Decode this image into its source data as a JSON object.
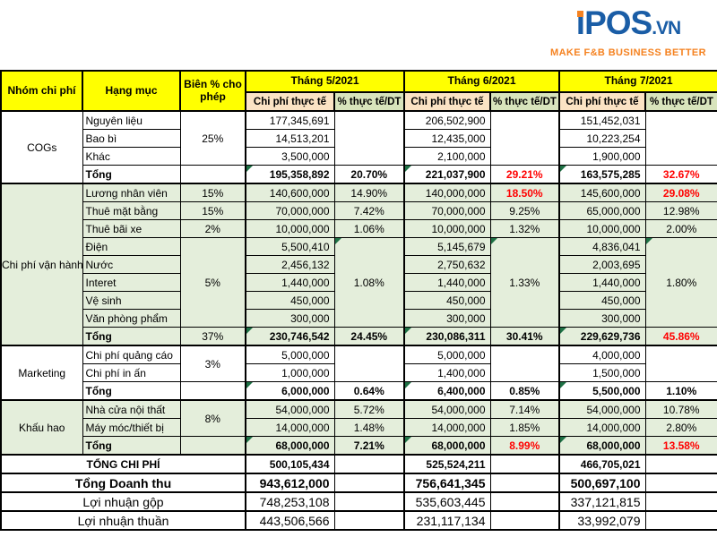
{
  "brand": {
    "i_glyph": "ı",
    "name_rest": "POS",
    "domain": ".VN",
    "full_name": "iPOS.VN",
    "tagline": "MAKE F&B BUSINESS BETTER"
  },
  "colors": {
    "header_yellow": "#FFFF00",
    "subheader_tan": "#FBE3C4",
    "subheader_sage": "#D8E4BC",
    "section_green": "#E4EEDB",
    "negative_red": "#FF0000",
    "triangle_green": "#1E7145",
    "brand_blue": "#1A5DA6",
    "brand_orange": "#F58220"
  },
  "table": {
    "rows": [
      {
        "cls": "hrow1",
        "name": "header-row",
        "cells": [
          {
            "t": "Nhóm chi phí",
            "rs": 2,
            "c": "hdr",
            "n": "header-nhom-chi-phi"
          },
          {
            "t": "Hạng mục",
            "rs": 2,
            "c": "hdr",
            "n": "header-hang-muc"
          },
          {
            "t": "Biên % cho phép",
            "rs": 2,
            "c": "hdr",
            "n": "header-bien-pct"
          },
          {
            "t": "Tháng 5/2021",
            "cs": 2,
            "c": "hdr",
            "n": "month-header-5-2021"
          },
          {
            "t": "Tháng 6/2021",
            "cs": 2,
            "c": "hdr",
            "n": "month-header-6-2021"
          },
          {
            "t": "Tháng 7/2021",
            "cs": 2,
            "c": "hdr",
            "n": "month-header-7-2021"
          }
        ]
      },
      {
        "cls": "hrow2 gend",
        "name": "subheader-row",
        "cells": [
          {
            "t": "Chi phí thực tế",
            "c": "sub tan",
            "n": "subheader-cost-5"
          },
          {
            "t": "% thực tế/DT",
            "c": "sub sage",
            "n": "subheader-pct-5"
          },
          {
            "t": "Chi phí thực tế",
            "c": "sub tan",
            "n": "subheader-cost-6"
          },
          {
            "t": "% thực tế/DT",
            "c": "sub sage",
            "n": "subheader-pct-6"
          },
          {
            "t": "Chi phí thực tế",
            "c": "sub tan",
            "n": "subheader-cost-7"
          },
          {
            "t": "% thực tế/DT",
            "c": "sub sage",
            "n": "subheader-pct-7"
          }
        ]
      },
      {
        "name": "row-nguyen-lieu",
        "cells": [
          {
            "t": "COGs",
            "rs": 4,
            "n": "group-label-cogs"
          },
          {
            "t": "Nguyên liệu"
          },
          {
            "t": "25%",
            "rs": 3
          },
          {
            "t": "177,345,691"
          },
          {
            "t": "",
            "rs": 3
          },
          {
            "t": "206,502,900"
          },
          {
            "t": "",
            "rs": 3
          },
          {
            "t": "151,452,031"
          },
          {
            "t": "",
            "rs": 3
          }
        ]
      },
      {
        "name": "row-bao-bi",
        "cells": [
          {
            "t": "Bao bì"
          },
          {
            "t": "14,513,201"
          },
          {
            "t": "12,435,000"
          },
          {
            "t": "10,223,254"
          }
        ]
      },
      {
        "name": "row-khac",
        "cells": [
          {
            "t": "Khác"
          },
          {
            "t": "3,500,000"
          },
          {
            "t": "2,100,000"
          },
          {
            "t": "1,900,000"
          }
        ]
      },
      {
        "cls": "gend",
        "name": "row-cogs-tong",
        "cells": [
          {
            "t": "Tổng",
            "c": "b"
          },
          {
            "t": ""
          },
          {
            "t": "195,358,892",
            "c": "b tri"
          },
          {
            "t": "20.70%",
            "c": "b"
          },
          {
            "t": "221,037,900",
            "c": "b tri"
          },
          {
            "t": "29.21%",
            "c": "b red"
          },
          {
            "t": "163,575,285",
            "c": "b tri"
          },
          {
            "t": "32.67%",
            "c": "b red"
          }
        ]
      },
      {
        "cls": "green gstart",
        "name": "row-luong-nhan-vien",
        "cells": [
          {
            "t": "Chi phí vận hành",
            "rs": 9,
            "n": "group-label-van-hanh"
          },
          {
            "t": "Lương nhân viên"
          },
          {
            "t": "15%"
          },
          {
            "t": "140,600,000"
          },
          {
            "t": "14.90%"
          },
          {
            "t": "140,000,000"
          },
          {
            "t": "18.50%",
            "c": "b red"
          },
          {
            "t": "145,600,000"
          },
          {
            "t": "29.08%",
            "c": "b red"
          }
        ]
      },
      {
        "cls": "green",
        "name": "row-thue-mat-bang",
        "cells": [
          {
            "t": "Thuê mặt bằng"
          },
          {
            "t": "15%"
          },
          {
            "t": "70,000,000"
          },
          {
            "t": "7.42%"
          },
          {
            "t": "70,000,000"
          },
          {
            "t": "9.25%"
          },
          {
            "t": "65,000,000"
          },
          {
            "t": "12.98%"
          }
        ]
      },
      {
        "cls": "green",
        "name": "row-thue-bai-xe",
        "cells": [
          {
            "t": "Thuê bãi xe"
          },
          {
            "t": "2%"
          },
          {
            "t": "10,000,000"
          },
          {
            "t": "1.06%"
          },
          {
            "t": "10,000,000"
          },
          {
            "t": "1.32%"
          },
          {
            "t": "10,000,000"
          },
          {
            "t": "2.00%"
          }
        ]
      },
      {
        "cls": "green",
        "name": "row-dien",
        "cells": [
          {
            "t": "Điện"
          },
          {
            "t": "5%",
            "rs": 5
          },
          {
            "t": "5,500,410"
          },
          {
            "t": "1.08%",
            "rs": 5,
            "c": "tri"
          },
          {
            "t": "5,145,679"
          },
          {
            "t": "1.33%",
            "rs": 5,
            "c": "tri"
          },
          {
            "t": "4,836,041"
          },
          {
            "t": "1.80%",
            "rs": 5,
            "c": "tri"
          }
        ]
      },
      {
        "cls": "green",
        "name": "row-nuoc",
        "cells": [
          {
            "t": "Nước"
          },
          {
            "t": "2,456,132"
          },
          {
            "t": "2,750,632"
          },
          {
            "t": "2,003,695"
          }
        ]
      },
      {
        "cls": "green",
        "name": "row-interet",
        "cells": [
          {
            "t": "Interet"
          },
          {
            "t": "1,440,000"
          },
          {
            "t": "1,440,000"
          },
          {
            "t": "1,440,000"
          }
        ]
      },
      {
        "cls": "green",
        "name": "row-ve-sinh",
        "cells": [
          {
            "t": "Vệ sinh"
          },
          {
            "t": "450,000"
          },
          {
            "t": "450,000"
          },
          {
            "t": "450,000"
          }
        ]
      },
      {
        "cls": "green",
        "name": "row-van-phong-pham",
        "cells": [
          {
            "t": "Văn phòng phẩm"
          },
          {
            "t": "300,000"
          },
          {
            "t": "300,000"
          },
          {
            "t": "300,000"
          }
        ]
      },
      {
        "cls": "green gend",
        "name": "row-van-hanh-tong",
        "cells": [
          {
            "t": "Tổng",
            "c": "b"
          },
          {
            "t": "37%"
          },
          {
            "t": "230,746,542",
            "c": "b tri"
          },
          {
            "t": "24.45%",
            "c": "b"
          },
          {
            "t": "230,086,311",
            "c": "b tri"
          },
          {
            "t": "30.41%",
            "c": "b"
          },
          {
            "t": "229,629,736",
            "c": "b tri"
          },
          {
            "t": "45.86%",
            "c": "b red"
          }
        ]
      },
      {
        "cls": "gstart",
        "name": "row-quang-cao",
        "cells": [
          {
            "t": "Marketing",
            "rs": 3,
            "n": "group-label-marketing"
          },
          {
            "t": "Chi phí quảng cáo"
          },
          {
            "t": "3%",
            "rs": 2
          },
          {
            "t": "5,000,000"
          },
          {
            "t": "",
            "rs": 2
          },
          {
            "t": "5,000,000"
          },
          {
            "t": "",
            "rs": 2
          },
          {
            "t": "4,000,000"
          },
          {
            "t": "",
            "rs": 2
          }
        ]
      },
      {
        "name": "row-in-an",
        "cells": [
          {
            "t": "Chi phí in ấn"
          },
          {
            "t": "1,000,000"
          },
          {
            "t": "1,400,000"
          },
          {
            "t": "1,500,000"
          }
        ]
      },
      {
        "cls": "gend",
        "name": "row-marketing-tong",
        "cells": [
          {
            "t": "Tổng",
            "c": "b"
          },
          {
            "t": ""
          },
          {
            "t": "6,000,000",
            "c": "b tri"
          },
          {
            "t": "0.64%",
            "c": "b"
          },
          {
            "t": "6,400,000",
            "c": "b tri"
          },
          {
            "t": "0.85%",
            "c": "b"
          },
          {
            "t": "5,500,000",
            "c": "b tri"
          },
          {
            "t": "1.10%",
            "c": "b"
          }
        ]
      },
      {
        "cls": "green gstart",
        "name": "row-nha-cua-noi-that",
        "cells": [
          {
            "t": "Khấu hao",
            "rs": 3,
            "n": "group-label-khau-hao"
          },
          {
            "t": "Nhà cửa nội thất"
          },
          {
            "t": "8%",
            "rs": 2
          },
          {
            "t": "54,000,000"
          },
          {
            "t": "5.72%"
          },
          {
            "t": "54,000,000"
          },
          {
            "t": "7.14%"
          },
          {
            "t": "54,000,000"
          },
          {
            "t": "10.78%"
          }
        ]
      },
      {
        "cls": "green",
        "name": "row-may-moc-thiet-bi",
        "cells": [
          {
            "t": "Máy móc/thiết bị"
          },
          {
            "t": "14,000,000"
          },
          {
            "t": "1.48%"
          },
          {
            "t": "14,000,000"
          },
          {
            "t": "1.85%"
          },
          {
            "t": "14,000,000"
          },
          {
            "t": "2.80%"
          }
        ]
      },
      {
        "cls": "green gend",
        "name": "row-khau-hao-tong",
        "cells": [
          {
            "t": "Tổng",
            "c": "b"
          },
          {
            "t": ""
          },
          {
            "t": "68,000,000",
            "c": "b tri"
          },
          {
            "t": "7.21%",
            "c": "b"
          },
          {
            "t": "68,000,000",
            "c": "b tri"
          },
          {
            "t": "8.99%",
            "c": "b red"
          },
          {
            "t": "68,000,000",
            "c": "b tri"
          },
          {
            "t": "13.58%",
            "c": "b red"
          }
        ]
      },
      {
        "cls": "gstart",
        "name": "row-tong-chi-phi",
        "cells": [
          {
            "t": "TỔNG CHI PHÍ",
            "cs": 3,
            "c": "cen b",
            "n": "summary-label"
          },
          {
            "t": "500,105,434",
            "c": "b"
          },
          {
            "t": ""
          },
          {
            "t": "525,524,211",
            "c": "b"
          },
          {
            "t": ""
          },
          {
            "t": "466,705,021",
            "c": "b"
          },
          {
            "t": ""
          }
        ]
      },
      {
        "cls": "gstart",
        "name": "row-tong-doanh-thu",
        "cells": [
          {
            "t": "Tổng Doanh thu",
            "cs": 3,
            "c": "cen b big",
            "n": "summary-label"
          },
          {
            "t": "943,612,000",
            "c": "b big"
          },
          {
            "t": ""
          },
          {
            "t": "756,641,345",
            "c": "b big"
          },
          {
            "t": ""
          },
          {
            "t": "500,697,100",
            "c": "b big"
          },
          {
            "t": ""
          }
        ]
      },
      {
        "cls": "gstart",
        "name": "row-loi-nhuan-gop",
        "cells": [
          {
            "t": "Lợi nhuận gộp",
            "cs": 3,
            "c": "cen big",
            "n": "summary-label"
          },
          {
            "t": "748,253,108",
            "c": "big"
          },
          {
            "t": ""
          },
          {
            "t": "535,603,445",
            "c": "big"
          },
          {
            "t": ""
          },
          {
            "t": "337,121,815",
            "c": "big"
          },
          {
            "t": ""
          }
        ]
      },
      {
        "cls": "gstart gend",
        "name": "row-loi-nhuan-thuan",
        "cells": [
          {
            "t": "Lợi nhuận thuần",
            "cs": 3,
            "c": "cen big",
            "n": "summary-label"
          },
          {
            "t": "443,506,566",
            "c": "big"
          },
          {
            "t": ""
          },
          {
            "t": "231,117,134",
            "c": "big"
          },
          {
            "t": ""
          },
          {
            "t": "33,992,079",
            "c": "big"
          },
          {
            "t": ""
          }
        ]
      }
    ]
  }
}
